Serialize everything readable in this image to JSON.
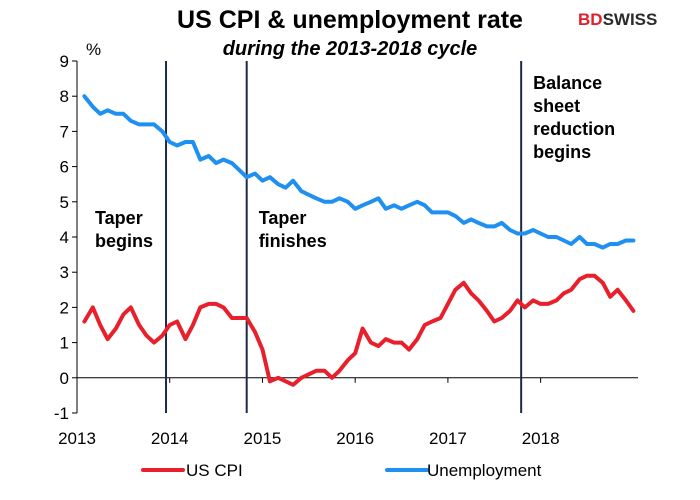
{
  "brand": {
    "part1": "BD",
    "part2": "SWISS",
    "color1": "#e41e2b",
    "color2": "#2b2b2b"
  },
  "chart_data": {
    "type": "line",
    "title": "US CPI & unemployment rate",
    "subtitle": "during the 2013-2018 cycle",
    "ylabel": "%",
    "ylim": [
      -1,
      9
    ],
    "yticks": [
      -1,
      0,
      1,
      2,
      3,
      4,
      5,
      6,
      7,
      8,
      9
    ],
    "xlim": [
      2013,
      2019.05
    ],
    "xticks": [
      2013,
      2014,
      2015,
      2016,
      2017,
      2018
    ],
    "grid": false,
    "legend_position": "bottom",
    "events": [
      {
        "x": 2013.96,
        "label": [
          "Taper",
          "begins"
        ]
      },
      {
        "x": 2014.83,
        "label": [
          "Taper",
          "finishes"
        ]
      },
      {
        "x": 2017.79,
        "label": [
          "Balance",
          "sheet",
          "reduction",
          "begins"
        ]
      }
    ],
    "series": [
      {
        "name": "US CPI",
        "color": "#e8202c",
        "points": [
          [
            2013.08,
            1.6
          ],
          [
            2013.17,
            2.0
          ],
          [
            2013.25,
            1.5
          ],
          [
            2013.33,
            1.1
          ],
          [
            2013.42,
            1.4
          ],
          [
            2013.5,
            1.8
          ],
          [
            2013.58,
            2.0
          ],
          [
            2013.67,
            1.5
          ],
          [
            2013.75,
            1.2
          ],
          [
            2013.83,
            1.0
          ],
          [
            2013.92,
            1.2
          ],
          [
            2014.0,
            1.5
          ],
          [
            2014.08,
            1.6
          ],
          [
            2014.17,
            1.1
          ],
          [
            2014.25,
            1.5
          ],
          [
            2014.33,
            2.0
          ],
          [
            2014.42,
            2.1
          ],
          [
            2014.5,
            2.1
          ],
          [
            2014.58,
            2.0
          ],
          [
            2014.67,
            1.7
          ],
          [
            2014.75,
            1.7
          ],
          [
            2014.83,
            1.7
          ],
          [
            2014.92,
            1.3
          ],
          [
            2015.0,
            0.8
          ],
          [
            2015.08,
            -0.1
          ],
          [
            2015.17,
            0.0
          ],
          [
            2015.25,
            -0.1
          ],
          [
            2015.33,
            -0.2
          ],
          [
            2015.42,
            0.0
          ],
          [
            2015.5,
            0.1
          ],
          [
            2015.58,
            0.2
          ],
          [
            2015.67,
            0.2
          ],
          [
            2015.75,
            0.0
          ],
          [
            2015.83,
            0.2
          ],
          [
            2015.92,
            0.5
          ],
          [
            2016.0,
            0.7
          ],
          [
            2016.08,
            1.4
          ],
          [
            2016.17,
            1.0
          ],
          [
            2016.25,
            0.9
          ],
          [
            2016.33,
            1.1
          ],
          [
            2016.42,
            1.0
          ],
          [
            2016.5,
            1.0
          ],
          [
            2016.58,
            0.8
          ],
          [
            2016.67,
            1.1
          ],
          [
            2016.75,
            1.5
          ],
          [
            2016.83,
            1.6
          ],
          [
            2016.92,
            1.7
          ],
          [
            2017.0,
            2.1
          ],
          [
            2017.08,
            2.5
          ],
          [
            2017.17,
            2.7
          ],
          [
            2017.25,
            2.4
          ],
          [
            2017.33,
            2.2
          ],
          [
            2017.42,
            1.9
          ],
          [
            2017.5,
            1.6
          ],
          [
            2017.58,
            1.7
          ],
          [
            2017.67,
            1.9
          ],
          [
            2017.75,
            2.2
          ],
          [
            2017.83,
            2.0
          ],
          [
            2017.92,
            2.2
          ],
          [
            2018.0,
            2.1
          ],
          [
            2018.08,
            2.1
          ],
          [
            2018.17,
            2.2
          ],
          [
            2018.25,
            2.4
          ],
          [
            2018.33,
            2.5
          ],
          [
            2018.42,
            2.8
          ],
          [
            2018.5,
            2.9
          ],
          [
            2018.58,
            2.9
          ],
          [
            2018.67,
            2.7
          ],
          [
            2018.75,
            2.3
          ],
          [
            2018.83,
            2.5
          ],
          [
            2018.92,
            2.2
          ],
          [
            2019.0,
            1.9
          ]
        ]
      },
      {
        "name": "Unemployment",
        "color": "#1f8ff0",
        "points": [
          [
            2013.08,
            8.0
          ],
          [
            2013.17,
            7.7
          ],
          [
            2013.25,
            7.5
          ],
          [
            2013.33,
            7.6
          ],
          [
            2013.42,
            7.5
          ],
          [
            2013.5,
            7.5
          ],
          [
            2013.58,
            7.3
          ],
          [
            2013.67,
            7.2
          ],
          [
            2013.75,
            7.2
          ],
          [
            2013.83,
            7.2
          ],
          [
            2013.92,
            7.0
          ],
          [
            2014.0,
            6.7
          ],
          [
            2014.08,
            6.6
          ],
          [
            2014.17,
            6.7
          ],
          [
            2014.25,
            6.7
          ],
          [
            2014.33,
            6.2
          ],
          [
            2014.42,
            6.3
          ],
          [
            2014.5,
            6.1
          ],
          [
            2014.58,
            6.2
          ],
          [
            2014.67,
            6.1
          ],
          [
            2014.75,
            5.9
          ],
          [
            2014.83,
            5.7
          ],
          [
            2014.92,
            5.8
          ],
          [
            2015.0,
            5.6
          ],
          [
            2015.08,
            5.7
          ],
          [
            2015.17,
            5.5
          ],
          [
            2015.25,
            5.4
          ],
          [
            2015.33,
            5.6
          ],
          [
            2015.42,
            5.3
          ],
          [
            2015.5,
            5.2
          ],
          [
            2015.58,
            5.1
          ],
          [
            2015.67,
            5.0
          ],
          [
            2015.75,
            5.0
          ],
          [
            2015.83,
            5.1
          ],
          [
            2015.92,
            5.0
          ],
          [
            2016.0,
            4.8
          ],
          [
            2016.08,
            4.9
          ],
          [
            2016.17,
            5.0
          ],
          [
            2016.25,
            5.1
          ],
          [
            2016.33,
            4.8
          ],
          [
            2016.42,
            4.9
          ],
          [
            2016.5,
            4.8
          ],
          [
            2016.58,
            4.9
          ],
          [
            2016.67,
            5.0
          ],
          [
            2016.75,
            4.9
          ],
          [
            2016.83,
            4.7
          ],
          [
            2016.92,
            4.7
          ],
          [
            2017.0,
            4.7
          ],
          [
            2017.08,
            4.6
          ],
          [
            2017.17,
            4.4
          ],
          [
            2017.25,
            4.5
          ],
          [
            2017.33,
            4.4
          ],
          [
            2017.42,
            4.3
          ],
          [
            2017.5,
            4.3
          ],
          [
            2017.58,
            4.4
          ],
          [
            2017.67,
            4.2
          ],
          [
            2017.75,
            4.1
          ],
          [
            2017.83,
            4.1
          ],
          [
            2017.92,
            4.2
          ],
          [
            2018.0,
            4.1
          ],
          [
            2018.08,
            4.0
          ],
          [
            2018.17,
            4.0
          ],
          [
            2018.25,
            3.9
          ],
          [
            2018.33,
            3.8
          ],
          [
            2018.42,
            4.0
          ],
          [
            2018.5,
            3.8
          ],
          [
            2018.58,
            3.8
          ],
          [
            2018.67,
            3.7
          ],
          [
            2018.75,
            3.8
          ],
          [
            2018.83,
            3.8
          ],
          [
            2018.92,
            3.9
          ],
          [
            2019.0,
            3.9
          ]
        ]
      }
    ]
  }
}
